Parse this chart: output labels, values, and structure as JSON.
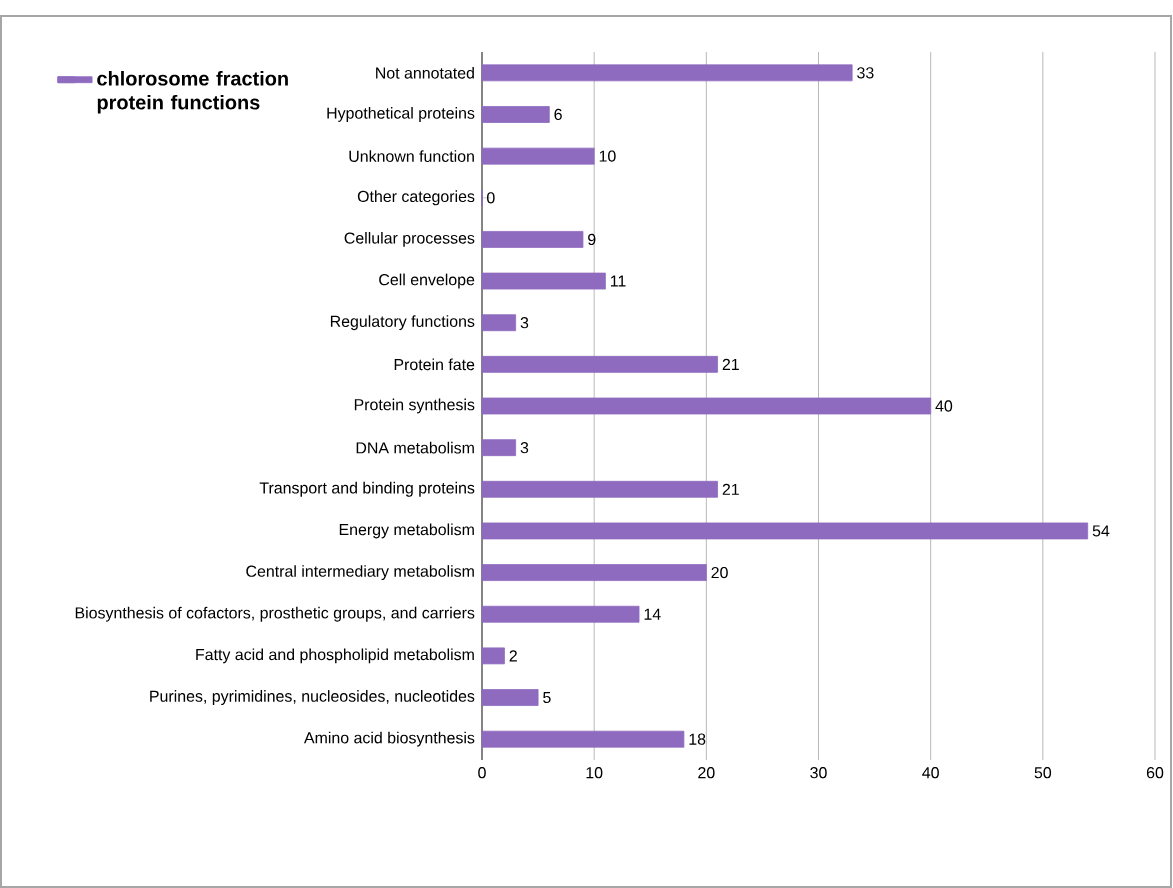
{
  "chart_data": {
    "type": "bar",
    "orientation": "horizontal",
    "categories": [
      "Not annotated",
      "Hypothetical proteins",
      "Unknown  function",
      "Other categories",
      "Cellular processes",
      "Cell envelope",
      "Regulatory functions",
      "Protein fate",
      "Protein synthesis",
      "DNA metabolism",
      "Transport and binding proteins",
      "Energy metabolism",
      "Central intermediary  metabolism",
      "Biosynthesis of cofactors, prosthetic groups, and carriers",
      "Fatty acid and phospholipid metabolism",
      "Purines, pyrimidines, nucleosides, nucleotides",
      "Amino acid biosynthesis"
    ],
    "series": [
      {
        "name": "chlorosome fraction protein functions",
        "color": "#8e6bbf",
        "values": [
          33,
          6,
          10,
          0,
          9,
          11,
          3,
          21,
          40,
          3,
          21,
          54,
          20,
          14,
          2,
          5,
          18
        ]
      }
    ],
    "xlim": [
      0,
      60
    ],
    "xticks": [
      0,
      10,
      20,
      30,
      40,
      50,
      60
    ],
    "grid": "x",
    "legend": "top left",
    "data_labels": true
  }
}
